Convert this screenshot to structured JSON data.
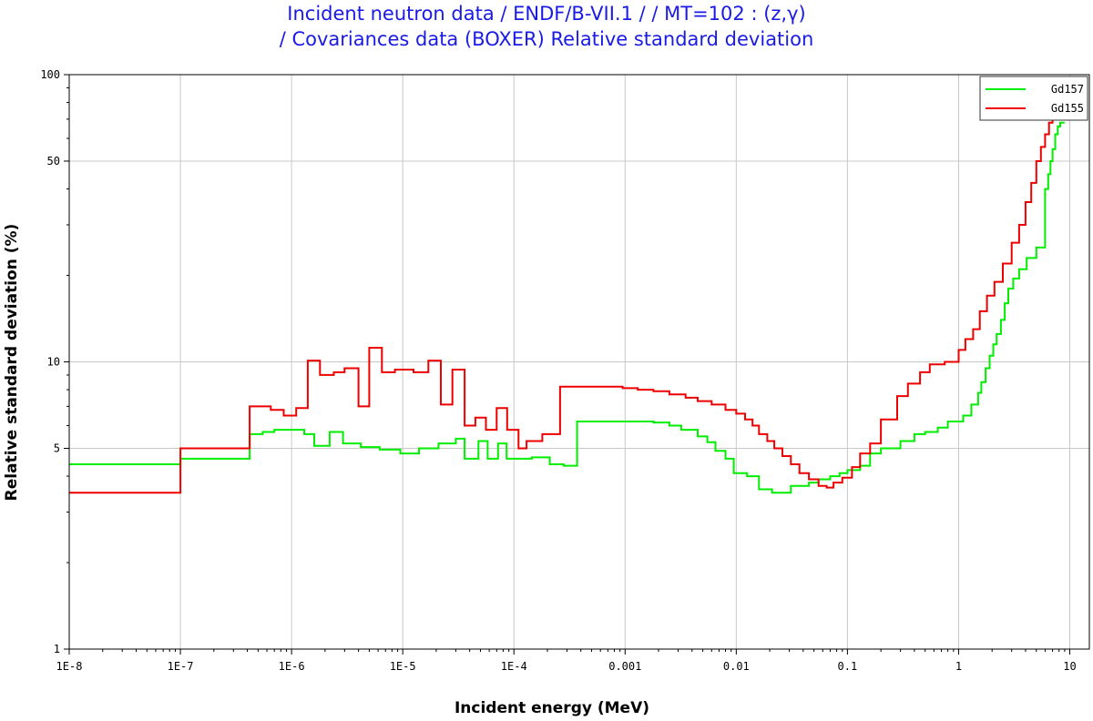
{
  "chart_data": {
    "type": "line",
    "title": "Incident neutron data / ENDF/B-VII.1 / / MT=102 : (z,γ)",
    "subtitle": "/ Covariances data (BOXER) Relative standard deviation",
    "xlabel": "Incident energy (MeV)",
    "ylabel": "Relative standard deviation (%)",
    "xscale": "log",
    "yscale": "log",
    "xlim": [
      1e-08,
      15
    ],
    "ylim": [
      1,
      100
    ],
    "grid": true,
    "legend_position": "top-right",
    "x_ticks": [
      {
        "value": 1e-08,
        "label": "1E-8"
      },
      {
        "value": 1e-07,
        "label": "1E-7"
      },
      {
        "value": 1e-06,
        "label": "1E-6"
      },
      {
        "value": 1e-05,
        "label": "1E-5"
      },
      {
        "value": 0.0001,
        "label": "1E-4"
      },
      {
        "value": 0.001,
        "label": "0.001"
      },
      {
        "value": 0.01,
        "label": "0.01"
      },
      {
        "value": 0.1,
        "label": "0.1"
      },
      {
        "value": 1,
        "label": "1"
      },
      {
        "value": 10,
        "label": "10"
      }
    ],
    "y_ticks": [
      {
        "value": 1,
        "label": "1"
      },
      {
        "value": 5,
        "label": "5"
      },
      {
        "value": 10,
        "label": "10"
      },
      {
        "value": 50,
        "label": "50"
      },
      {
        "value": 100,
        "label": "100"
      }
    ],
    "series": [
      {
        "name": "Gd157",
        "color": "#00ee00",
        "step": true,
        "points": [
          [
            1e-08,
            4.4
          ],
          [
            1e-07,
            4.6
          ],
          [
            4.2e-07,
            5.6
          ],
          [
            5.5e-07,
            5.7
          ],
          [
            7e-07,
            5.8
          ],
          [
            1.3e-06,
            5.6
          ],
          [
            1.6e-06,
            5.1
          ],
          [
            2.2e-06,
            5.7
          ],
          [
            2.9e-06,
            5.2
          ],
          [
            4.2e-06,
            5.05
          ],
          [
            6.2e-06,
            4.95
          ],
          [
            9.5e-06,
            4.8
          ],
          [
            1.4e-05,
            5.0
          ],
          [
            2.1e-05,
            5.2
          ],
          [
            3e-05,
            5.4
          ],
          [
            3.6e-05,
            4.6
          ],
          [
            4.8e-05,
            5.3
          ],
          [
            5.8e-05,
            4.6
          ],
          [
            7.2e-05,
            5.2
          ],
          [
            8.6e-05,
            4.6
          ],
          [
            0.000145,
            4.65
          ],
          [
            0.00021,
            4.4
          ],
          [
            0.00028,
            4.35
          ],
          [
            0.00037,
            6.2
          ],
          [
            0.0018,
            6.15
          ],
          [
            0.0025,
            6.0
          ],
          [
            0.0032,
            5.8
          ],
          [
            0.0045,
            5.5
          ],
          [
            0.0055,
            5.25
          ],
          [
            0.0065,
            4.9
          ],
          [
            0.008,
            4.6
          ],
          [
            0.0095,
            4.1
          ],
          [
            0.0125,
            4.0
          ],
          [
            0.016,
            3.6
          ],
          [
            0.021,
            3.5
          ],
          [
            0.027,
            3.5
          ],
          [
            0.031,
            3.7
          ],
          [
            0.045,
            3.8
          ],
          [
            0.055,
            3.9
          ],
          [
            0.07,
            4.0
          ],
          [
            0.085,
            4.1
          ],
          [
            0.1,
            4.2
          ],
          [
            0.13,
            4.35
          ],
          [
            0.16,
            4.8
          ],
          [
            0.2,
            5.0
          ],
          [
            0.3,
            5.3
          ],
          [
            0.4,
            5.6
          ],
          [
            0.5,
            5.7
          ],
          [
            0.65,
            5.9
          ],
          [
            0.8,
            6.2
          ],
          [
            1.1,
            6.5
          ],
          [
            1.3,
            7.1
          ],
          [
            1.5,
            7.8
          ],
          [
            1.6,
            8.5
          ],
          [
            1.75,
            9.5
          ],
          [
            1.9,
            10.5
          ],
          [
            2.05,
            11.5
          ],
          [
            2.2,
            12.5
          ],
          [
            2.4,
            14.0
          ],
          [
            2.6,
            16.0
          ],
          [
            2.8,
            18.0
          ],
          [
            3.1,
            19.5
          ],
          [
            3.5,
            21.0
          ],
          [
            4.1,
            23.0
          ],
          [
            5.0,
            25.0
          ],
          [
            6.0,
            40.0
          ],
          [
            6.4,
            45.0
          ],
          [
            6.7,
            50.0
          ],
          [
            7.0,
            55.0
          ],
          [
            7.4,
            62.0
          ],
          [
            7.8,
            66.0
          ],
          [
            8.2,
            68.0
          ],
          [
            9.0,
            68.0
          ]
        ]
      },
      {
        "name": "Gd155",
        "color": "#ee0000",
        "step": true,
        "points": [
          [
            1e-08,
            3.5
          ],
          [
            1e-07,
            5.0
          ],
          [
            4.2e-07,
            7.0
          ],
          [
            6.5e-07,
            6.8
          ],
          [
            8.5e-07,
            6.5
          ],
          [
            1.1e-06,
            6.9
          ],
          [
            1.4e-06,
            10.1
          ],
          [
            1.8e-06,
            9.0
          ],
          [
            2.4e-06,
            9.2
          ],
          [
            3e-06,
            9.5
          ],
          [
            4e-06,
            7.0
          ],
          [
            5e-06,
            11.2
          ],
          [
            6.5e-06,
            9.2
          ],
          [
            8.5e-06,
            9.4
          ],
          [
            1.25e-05,
            9.2
          ],
          [
            1.7e-05,
            10.1
          ],
          [
            2.2e-05,
            7.1
          ],
          [
            2.8e-05,
            9.4
          ],
          [
            3.6e-05,
            6.0
          ],
          [
            4.5e-05,
            6.4
          ],
          [
            5.6e-05,
            5.8
          ],
          [
            7e-05,
            6.9
          ],
          [
            8.7e-05,
            5.8
          ],
          [
            0.00011,
            5.0
          ],
          [
            0.00013,
            5.3
          ],
          [
            0.00018,
            5.6
          ],
          [
            0.00026,
            8.2
          ],
          [
            0.00095,
            8.1
          ],
          [
            0.0013,
            8.0
          ],
          [
            0.0018,
            7.9
          ],
          [
            0.0025,
            7.7
          ],
          [
            0.0035,
            7.5
          ],
          [
            0.0045,
            7.3
          ],
          [
            0.006,
            7.1
          ],
          [
            0.008,
            6.8
          ],
          [
            0.01,
            6.6
          ],
          [
            0.012,
            6.3
          ],
          [
            0.014,
            6.0
          ],
          [
            0.016,
            5.6
          ],
          [
            0.019,
            5.3
          ],
          [
            0.022,
            5.0
          ],
          [
            0.026,
            4.7
          ],
          [
            0.031,
            4.4
          ],
          [
            0.037,
            4.1
          ],
          [
            0.045,
            3.9
          ],
          [
            0.055,
            3.7
          ],
          [
            0.065,
            3.65
          ],
          [
            0.075,
            3.8
          ],
          [
            0.09,
            3.95
          ],
          [
            0.11,
            4.3
          ],
          [
            0.13,
            4.8
          ],
          [
            0.16,
            5.2
          ],
          [
            0.2,
            6.3
          ],
          [
            0.28,
            7.6
          ],
          [
            0.35,
            8.4
          ],
          [
            0.45,
            9.2
          ],
          [
            0.55,
            9.8
          ],
          [
            0.75,
            10.0
          ],
          [
            1.0,
            11.0
          ],
          [
            1.15,
            12.0
          ],
          [
            1.35,
            13.0
          ],
          [
            1.55,
            15.0
          ],
          [
            1.8,
            17.0
          ],
          [
            2.1,
            19.0
          ],
          [
            2.5,
            22.0
          ],
          [
            3.0,
            26.0
          ],
          [
            3.5,
            30.0
          ],
          [
            4.0,
            36.0
          ],
          [
            4.5,
            42.0
          ],
          [
            5.0,
            50.0
          ],
          [
            5.5,
            56.0
          ],
          [
            6.0,
            62.0
          ],
          [
            6.5,
            68.0
          ],
          [
            7.0,
            70.0
          ],
          [
            8.0,
            70.0
          ]
        ]
      }
    ]
  }
}
